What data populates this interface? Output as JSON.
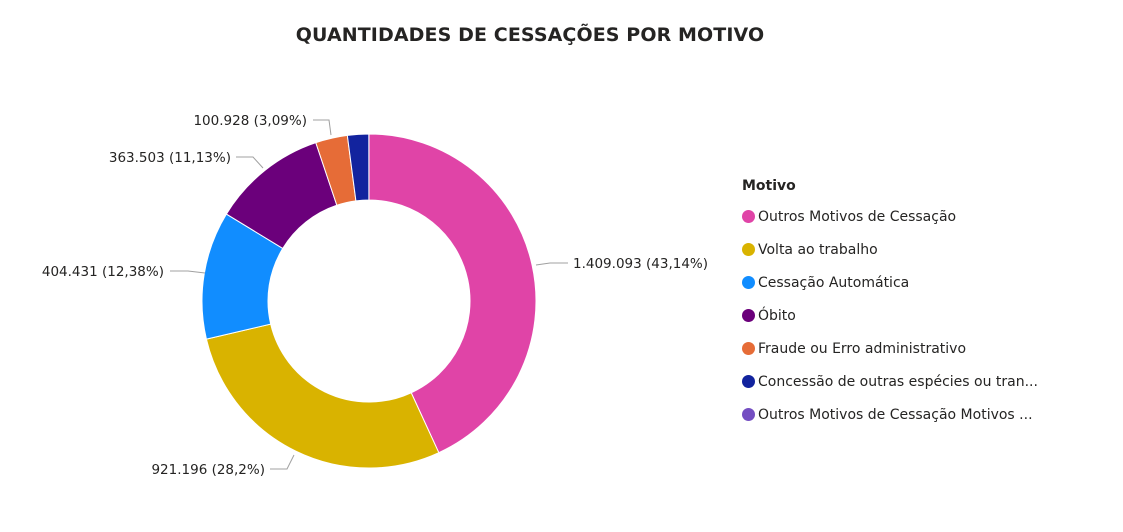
{
  "title": "QUANTIDADES DE CESSAÇÕES POR MOTIVO",
  "legend": {
    "title": "Motivo",
    "items": [
      {
        "label": "Outros Motivos de Cessação",
        "color": "#E044A7"
      },
      {
        "label": "Volta ao trabalho",
        "color": "#D9B300"
      },
      {
        "label": "Cessação Automática",
        "color": "#118DFF"
      },
      {
        "label": "Óbito",
        "color": "#6B007B"
      },
      {
        "label": "Fraude ou Erro administrativo",
        "color": "#E66C37"
      },
      {
        "label": "Concessão de outras espécies ou tran...",
        "color": "#12239E"
      },
      {
        "label": "Outros Motivos de Cessação Motivos ...",
        "color": "#744EC2"
      }
    ]
  },
  "data_labels": [
    "1.409.093 (43,14%)",
    "921.196 (28,2%)",
    "404.431 (12,38%)",
    "363.503 (11,13%)",
    "100.928 (3,09%)"
  ],
  "chart_data": {
    "type": "pie",
    "subtype": "donut",
    "title": "QUANTIDADES DE CESSAÇÕES POR MOTIVO",
    "legend_title": "Motivo",
    "legend_position": "right",
    "categories": [
      "Outros Motivos de Cessação",
      "Volta ao trabalho",
      "Cessação Automática",
      "Óbito",
      "Fraude ou Erro administrativo",
      "Concessão de outras espécies ou tran...",
      "Outros Motivos de Cessação Motivos ..."
    ],
    "values": [
      1409093,
      921196,
      404431,
      363503,
      100928,
      67500,
      400
    ],
    "percentages": [
      43.14,
      28.2,
      12.38,
      11.13,
      3.09,
      2.06,
      0.01
    ],
    "colors": [
      "#E044A7",
      "#D9B300",
      "#118DFF",
      "#6B007B",
      "#E66C37",
      "#12239E",
      "#744EC2"
    ],
    "labeled_values": {
      "Outros Motivos de Cessação": "1.409.093 (43,14%)",
      "Volta ao trabalho": "921.196 (28,2%)",
      "Cessação Automática": "404.431 (12,38%)",
      "Óbito": "363.503 (11,13%)",
      "Fraude ou Erro administrativo": "100.928 (3,09%)"
    }
  }
}
